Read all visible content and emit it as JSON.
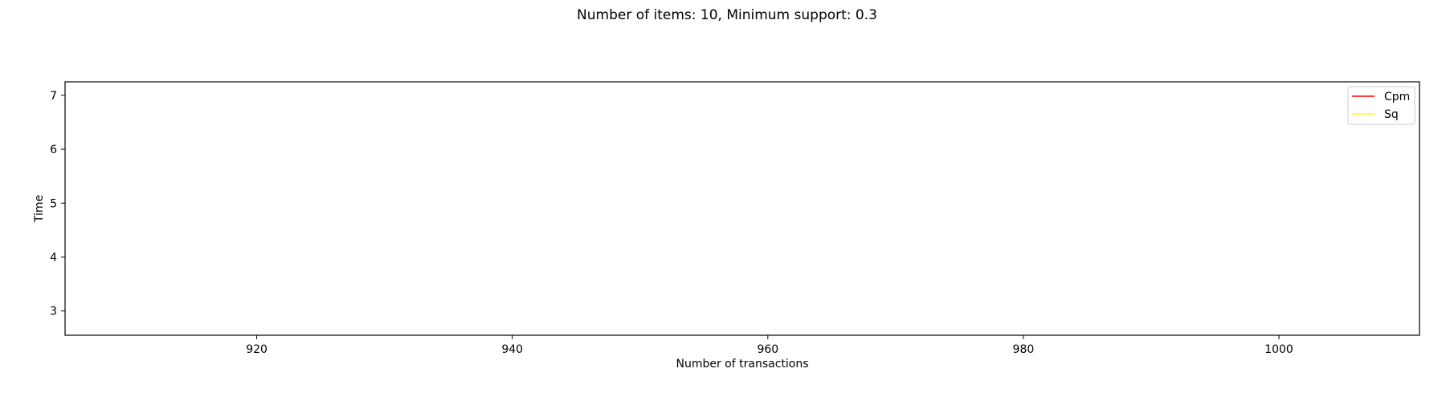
{
  "chart_data": {
    "type": "line",
    "title": "Number of items: 10, Minimum support: 0.3",
    "xlabel": "Number of transactions",
    "ylabel": "Time",
    "xlim": [
      905,
      1011
    ],
    "ylim": [
      2.55,
      7.25
    ],
    "xticks": [
      920,
      940,
      960,
      980,
      1000
    ],
    "yticks": [
      3,
      4,
      5,
      6,
      7
    ],
    "grid": false,
    "legend_position": "upper right",
    "series": [
      {
        "name": "Cpm",
        "color": "#ff0000",
        "x": [],
        "y": []
      },
      {
        "name": "Sq",
        "color": "#ffff00",
        "x": [],
        "y": []
      }
    ]
  }
}
